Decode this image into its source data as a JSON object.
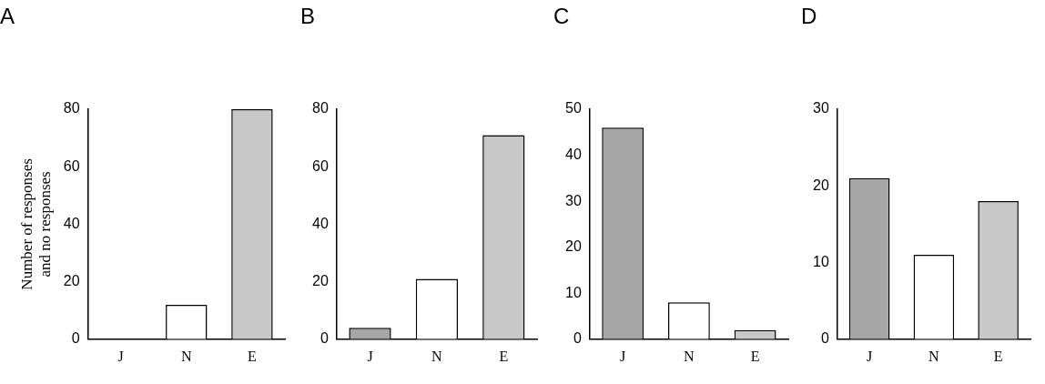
{
  "chart_data": [
    {
      "type": "bar",
      "title": "A",
      "y_label": "Number of responses and no responses",
      "categories": [
        "J",
        "N",
        "E"
      ],
      "values": [
        0,
        12,
        80
      ],
      "colors": [
        "#a6a6a6",
        "#ffffff",
        "#c8c8c8"
      ],
      "ylim": [
        0,
        80
      ],
      "yticks": [
        0,
        20,
        40,
        60,
        80
      ],
      "grid": false
    },
    {
      "type": "bar",
      "title": "B",
      "categories": [
        "J",
        "N",
        "E"
      ],
      "values": [
        4,
        21,
        71
      ],
      "colors": [
        "#a6a6a6",
        "#ffffff",
        "#c8c8c8"
      ],
      "ylim": [
        0,
        80
      ],
      "yticks": [
        0,
        20,
        40,
        60,
        80
      ],
      "grid": false
    },
    {
      "type": "bar",
      "title": "C",
      "categories": [
        "J",
        "N",
        "E"
      ],
      "values": [
        46,
        8,
        2
      ],
      "colors": [
        "#a6a6a6",
        "#ffffff",
        "#c8c8c8"
      ],
      "ylim": [
        0,
        50
      ],
      "yticks": [
        0,
        10,
        20,
        30,
        40,
        50
      ],
      "grid": false
    },
    {
      "type": "bar",
      "title": "D",
      "categories": [
        "J",
        "N",
        "E"
      ],
      "values": [
        21,
        11,
        18
      ],
      "colors": [
        "#a6a6a6",
        "#ffffff",
        "#c8c8c8"
      ],
      "ylim": [
        0,
        30
      ],
      "yticks": [
        0,
        10,
        20,
        30
      ],
      "grid": false
    }
  ]
}
